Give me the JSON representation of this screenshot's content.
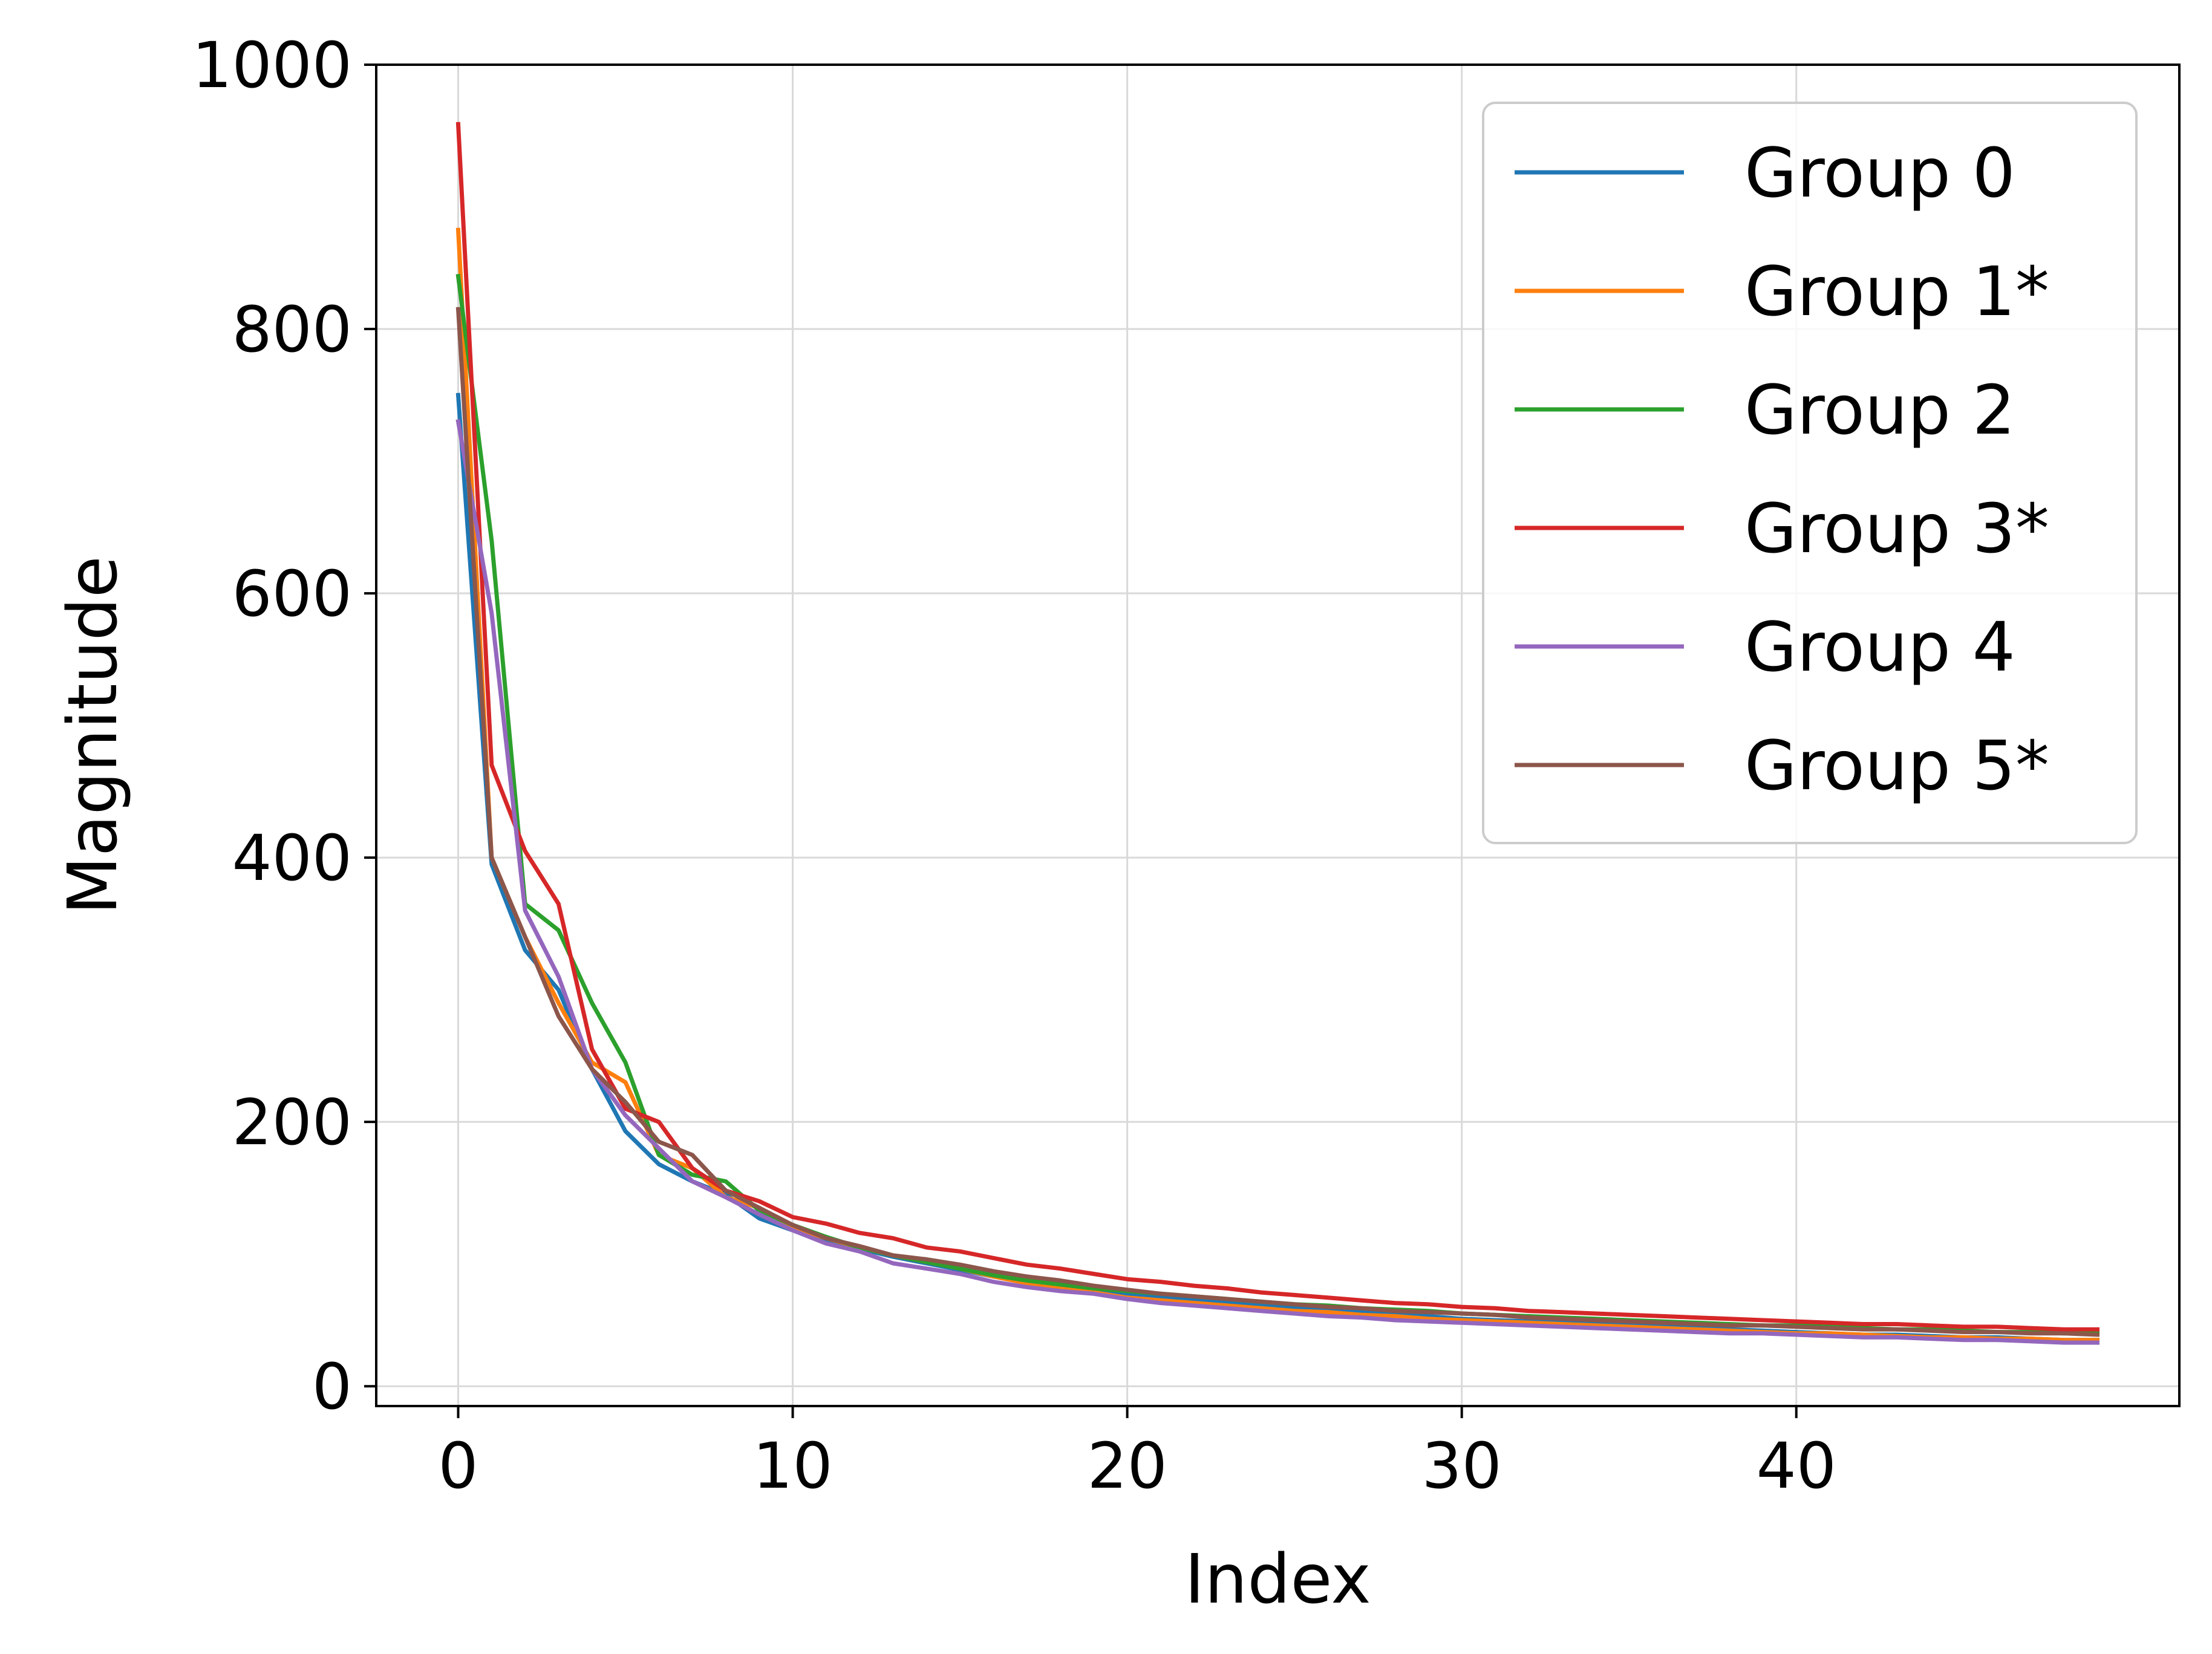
{
  "chart_data": {
    "type": "line",
    "title": "",
    "xlabel": "Index",
    "ylabel": "Magnitude",
    "xlim": [
      -2.45,
      51.45
    ],
    "ylim": [
      -15,
      1000
    ],
    "xticks": [
      0,
      10,
      20,
      30,
      40
    ],
    "yticks": [
      0,
      200,
      400,
      600,
      800,
      1000
    ],
    "grid": true,
    "legend_position": "top-right",
    "series": [
      {
        "name": "Group 0",
        "color": "#1f77b4",
        "values": [
          750,
          395,
          330,
          300,
          240,
          193,
          168,
          155,
          145,
          127,
          118,
          110,
          104,
          98,
          93,
          88,
          83,
          79,
          75,
          72,
          70,
          67,
          65,
          63,
          61,
          59,
          57,
          56,
          54,
          53,
          51,
          50,
          49,
          48,
          47,
          46,
          45,
          44,
          43,
          42,
          41,
          40,
          39,
          39,
          38,
          37,
          37,
          36,
          35,
          35
        ]
      },
      {
        "name": "Group 1*",
        "color": "#ff7f0e",
        "values": [
          875,
          400,
          340,
          290,
          245,
          230,
          175,
          165,
          143,
          135,
          120,
          112,
          105,
          99,
          94,
          89,
          83,
          78,
          74,
          71,
          67,
          65,
          63,
          61,
          59,
          57,
          56,
          54,
          53,
          51,
          50,
          49,
          48,
          47,
          46,
          45,
          44,
          43,
          42,
          41,
          40,
          40,
          39,
          38,
          37,
          37,
          36,
          36,
          35,
          35
        ]
      },
      {
        "name": "Group 2",
        "color": "#2ca02c",
        "values": [
          840,
          640,
          365,
          345,
          290,
          245,
          175,
          160,
          155,
          133,
          122,
          113,
          105,
          99,
          94,
          89,
          84,
          80,
          77,
          74,
          72,
          70,
          68,
          66,
          64,
          62,
          61,
          59,
          58,
          57,
          55,
          54,
          53,
          52,
          51,
          50,
          49,
          48,
          47,
          46,
          46,
          45,
          44,
          43,
          43,
          42,
          41,
          41,
          40,
          40
        ]
      },
      {
        "name": "Group 3*",
        "color": "#d62728",
        "values": [
          955,
          470,
          405,
          365,
          255,
          210,
          200,
          165,
          148,
          140,
          128,
          123,
          116,
          112,
          105,
          102,
          97,
          92,
          89,
          85,
          81,
          79,
          76,
          74,
          71,
          69,
          67,
          65,
          63,
          62,
          60,
          59,
          57,
          56,
          55,
          54,
          53,
          52,
          51,
          50,
          49,
          48,
          47,
          47,
          46,
          45,
          45,
          44,
          43,
          43
        ]
      },
      {
        "name": "Group 4",
        "color": "#9467bd",
        "values": [
          730,
          585,
          360,
          310,
          240,
          205,
          180,
          155,
          143,
          130,
          118,
          108,
          102,
          93,
          89,
          85,
          79,
          75,
          72,
          70,
          66,
          63,
          61,
          59,
          57,
          55,
          53,
          52,
          50,
          49,
          48,
          47,
          46,
          45,
          44,
          43,
          42,
          41,
          40,
          40,
          39,
          38,
          37,
          37,
          36,
          35,
          35,
          34,
          33,
          33
        ]
      },
      {
        "name": "Group 5*",
        "color": "#8c564b",
        "values": [
          815,
          400,
          340,
          280,
          240,
          215,
          185,
          175,
          148,
          135,
          122,
          112,
          106,
          99,
          96,
          92,
          87,
          83,
          80,
          76,
          73,
          70,
          68,
          66,
          64,
          62,
          60,
          59,
          57,
          56,
          55,
          54,
          52,
          51,
          50,
          49,
          48,
          47,
          46,
          46,
          45,
          44,
          43,
          43,
          42,
          41,
          41,
          40,
          40,
          39
        ]
      }
    ]
  }
}
